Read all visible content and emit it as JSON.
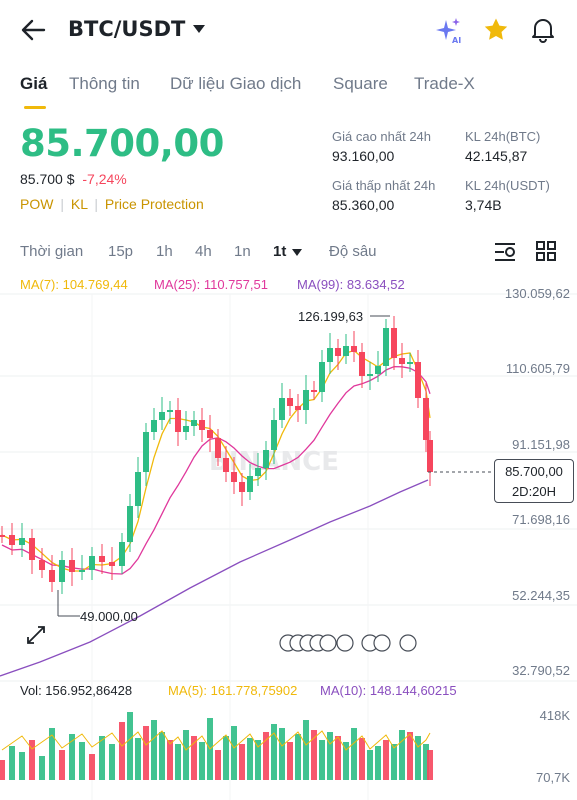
{
  "header": {
    "title": "BTC/USDT",
    "icons": [
      "back-arrow-icon",
      "caret-down-icon",
      "ai-sparkle-icon",
      "star-icon",
      "bell-icon"
    ]
  },
  "tabs": [
    "Giá",
    "Thông tin",
    "Dữ liệu Giao dịch",
    "Square",
    "Trade-X"
  ],
  "price": {
    "last": "85.700,00",
    "usd": "85.700 $",
    "change": "-7,24%",
    "chips": [
      "POW",
      "KL",
      "Price Protection"
    ]
  },
  "stats": {
    "high_label": "Giá cao nhất 24h",
    "high": "93.160,00",
    "low_label": "Giá thấp nhất 24h",
    "low": "85.360,00",
    "vol_btc_label": "KL 24h(BTC)",
    "vol_btc": "42.145,87",
    "vol_usdt_label": "KL 24h(USDT)",
    "vol_usdt": "3,74B"
  },
  "timeframes": {
    "items": [
      "Thời gian",
      "15p",
      "1h",
      "4h",
      "1n",
      "1t"
    ],
    "depth": "Độ sâu",
    "selected": "1t"
  },
  "ma": {
    "ma7": "MA(7): 104.769,44",
    "ma25": "MA(25): 110.757,51",
    "ma99": "MA(99): 83.634,52"
  },
  "price_axis": [
    "130.059,62",
    "110.605,79",
    "91.151,98",
    "71.698,16",
    "52.244,35",
    "32.790,52"
  ],
  "annotations": {
    "high": "126.199,63",
    "low": "49.000,00",
    "current_price": "85.700,00",
    "countdown": "2D:20H",
    "watermark": "BINANCE"
  },
  "volume": {
    "label": "Vol: 156.952,86428",
    "ma5": "MA(5): 161.778,75902",
    "ma10": "MA(10): 148.144,60215",
    "axis": [
      "418K",
      "70,7K"
    ]
  },
  "colors": {
    "up": "#2ebd85",
    "down": "#f6465d",
    "accent": "#f0b90b",
    "ma7": "#f0b90b",
    "ma25": "#e0389c",
    "ma99": "#8a4fbf"
  }
}
